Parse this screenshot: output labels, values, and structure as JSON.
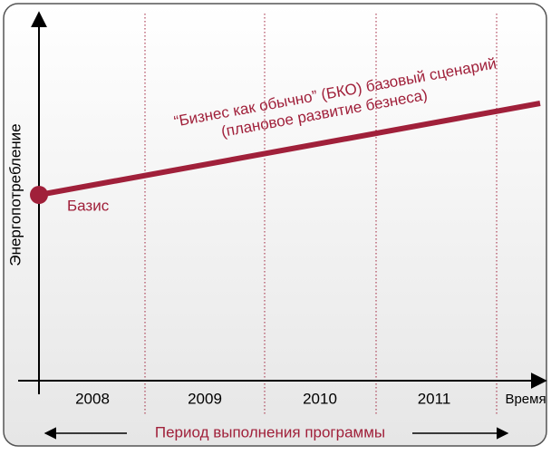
{
  "diagram": {
    "y_axis_label": "Энергопотребление",
    "x_axis_label": "Время",
    "periods": [
      "2008",
      "2009",
      "2010",
      "2011"
    ],
    "baseline_label": "Базис",
    "scenario_label": [
      "“Бизнес как обычно” (БКО) базовый сценарий",
      "(плановое развитие безнеса)"
    ],
    "program_period_label": "Период выполнения программы"
  }
}
